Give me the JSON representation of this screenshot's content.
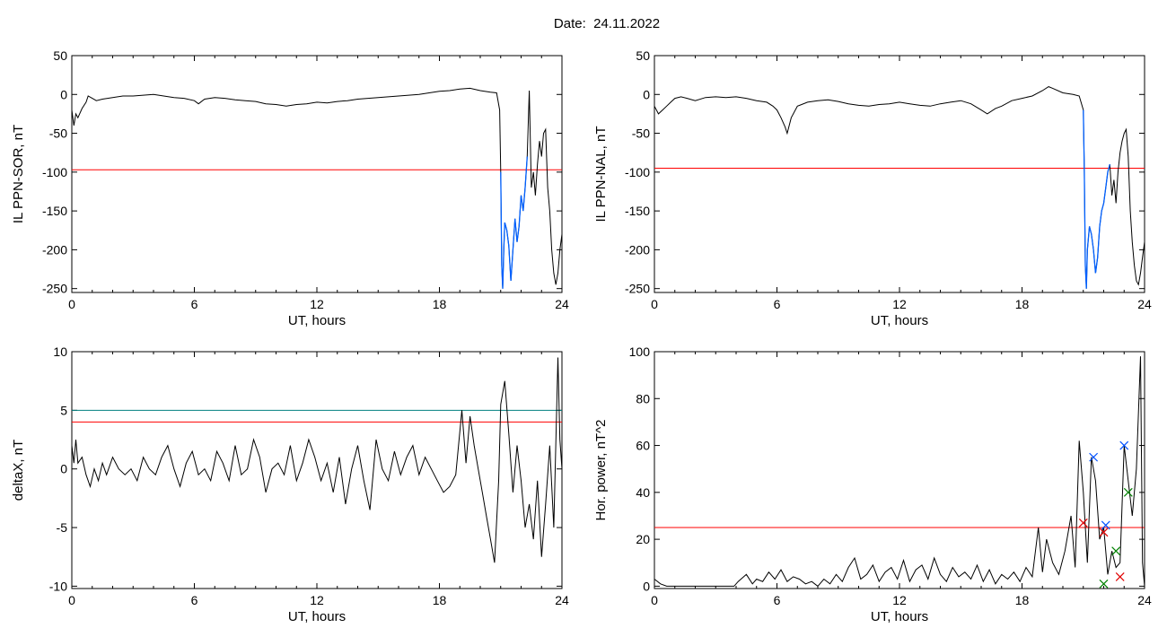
{
  "date_label": "Date:  24.11.2022",
  "colors": {
    "trace": "#000000",
    "threshold_red": "#ff0000",
    "threshold_teal": "#008080",
    "highlight_blue": "#0060ff",
    "marker_blue": "#0050ff",
    "marker_red": "#e00000",
    "marker_green": "#008000"
  },
  "chart_data": [
    {
      "type": "line",
      "xlabel": "UT, hours",
      "ylabel": "IL PPN-SOR, nT",
      "xlim": [
        0,
        24
      ],
      "ylim": [
        -255,
        50
      ],
      "xticks": [
        "0",
        "6",
        "12",
        "18",
        "24"
      ],
      "yticks": [
        "50",
        "0",
        "-50",
        "-100",
        "-150",
        "-200",
        "-250"
      ],
      "threshold": -97,
      "series": [
        {
          "x": [
            0,
            0.1,
            0.2,
            0.3,
            0.5,
            0.7,
            0.8,
            1.0,
            1.2,
            1.5,
            2,
            2.5,
            3,
            3.5,
            4,
            4.5,
            5,
            5.5,
            6,
            6.2,
            6.5,
            7,
            7.5,
            8,
            8.5,
            9,
            9.5,
            10,
            10.5,
            11,
            11.5,
            12,
            12.5,
            13,
            13.5,
            14,
            14.5,
            15,
            15.5,
            16,
            16.5,
            17,
            17.5,
            18,
            18.5,
            19,
            19.5,
            20,
            20.5,
            20.8,
            20.95,
            21.0,
            21.05,
            21.1,
            21.15,
            21.2,
            21.3,
            21.4,
            21.5,
            21.6,
            21.7,
            21.8,
            21.9,
            22.0,
            22.1,
            22.2,
            22.3,
            22.4,
            22.5,
            22.6,
            22.7,
            22.8,
            22.9,
            23.0,
            23.1,
            23.2,
            23.3,
            23.4,
            23.5,
            23.6,
            23.7,
            23.8,
            23.9,
            24
          ],
          "y": [
            -20,
            -40,
            -25,
            -30,
            -18,
            -10,
            -2,
            -5,
            -8,
            -6,
            -4,
            -2,
            -2,
            -1,
            0,
            -2,
            -4,
            -5,
            -8,
            -12,
            -6,
            -4,
            -5,
            -7,
            -8,
            -9,
            -12,
            -13,
            -15,
            -13,
            -12,
            -10,
            -11,
            -9,
            -8,
            -6,
            -5,
            -4,
            -3,
            -2,
            -1,
            0,
            2,
            4,
            5,
            7,
            8,
            5,
            3,
            2,
            -20,
            -100,
            -220,
            -250,
            -200,
            -165,
            -175,
            -195,
            -240,
            -200,
            -160,
            -190,
            -170,
            -130,
            -150,
            -120,
            -80,
            5,
            -120,
            -100,
            -130,
            -90,
            -60,
            -80,
            -50,
            -45,
            -120,
            -150,
            -200,
            -230,
            -245,
            -230,
            -200,
            -180
          ],
          "highlight_range": [
            21.0,
            22.3
          ]
        }
      ]
    },
    {
      "type": "line",
      "xlabel": "UT, hours",
      "ylabel": "IL PPN-NAL, nT",
      "xlim": [
        0,
        24
      ],
      "ylim": [
        -255,
        50
      ],
      "xticks": [
        "0",
        "6",
        "12",
        "18",
        "24"
      ],
      "yticks": [
        "50",
        "0",
        "-50",
        "-100",
        "-150",
        "-200",
        "-250"
      ],
      "threshold": -95,
      "series": [
        {
          "x": [
            0,
            0.2,
            0.4,
            0.6,
            0.8,
            1.0,
            1.3,
            1.6,
            2.0,
            2.5,
            3,
            3.5,
            4,
            4.5,
            5,
            5.5,
            5.8,
            6.0,
            6.2,
            6.4,
            6.5,
            6.7,
            7.0,
            7.5,
            8,
            8.5,
            9,
            9.5,
            10,
            10.5,
            11,
            11.5,
            12,
            12.5,
            13,
            13.5,
            14,
            14.5,
            15,
            15.5,
            16,
            16.3,
            16.7,
            17,
            17.5,
            18,
            18.5,
            19,
            19.3,
            19.5,
            20,
            20.5,
            20.8,
            21.0,
            21.05,
            21.1,
            21.15,
            21.2,
            21.3,
            21.4,
            21.5,
            21.6,
            21.7,
            21.8,
            21.9,
            22.0,
            22.1,
            22.2,
            22.3,
            22.4,
            22.5,
            22.6,
            22.7,
            22.8,
            22.9,
            23.0,
            23.1,
            23.2,
            23.3,
            23.4,
            23.5,
            23.6,
            23.7,
            23.8,
            23.9,
            24
          ],
          "y": [
            -15,
            -25,
            -20,
            -15,
            -10,
            -5,
            -3,
            -5,
            -8,
            -4,
            -3,
            -4,
            -3,
            -5,
            -8,
            -10,
            -15,
            -20,
            -30,
            -42,
            -50,
            -30,
            -15,
            -10,
            -8,
            -7,
            -9,
            -12,
            -14,
            -15,
            -13,
            -12,
            -10,
            -12,
            -14,
            -15,
            -12,
            -10,
            -8,
            -12,
            -20,
            -25,
            -18,
            -15,
            -8,
            -5,
            -2,
            5,
            10,
            8,
            2,
            0,
            -2,
            -20,
            -100,
            -220,
            -250,
            -200,
            -170,
            -180,
            -200,
            -230,
            -210,
            -170,
            -150,
            -140,
            -120,
            -100,
            -90,
            -130,
            -110,
            -140,
            -100,
            -75,
            -60,
            -50,
            -45,
            -80,
            -150,
            -190,
            -220,
            -240,
            -245,
            -230,
            -210,
            -190
          ],
          "highlight_range": [
            21.0,
            22.3
          ]
        }
      ]
    },
    {
      "type": "line",
      "xlabel": "UT, hours",
      "ylabel": "deltaX, nT",
      "xlim": [
        0,
        24
      ],
      "ylim": [
        -10.2,
        10
      ],
      "xticks": [
        "0",
        "6",
        "12",
        "18",
        "24"
      ],
      "yticks": [
        "10",
        "5",
        "0",
        "-5",
        "-10"
      ],
      "threshold": 4,
      "threshold2": 5,
      "series": [
        {
          "x": [
            0,
            0.1,
            0.2,
            0.3,
            0.5,
            0.7,
            0.9,
            1.1,
            1.3,
            1.5,
            1.7,
            2,
            2.3,
            2.6,
            2.9,
            3.2,
            3.5,
            3.8,
            4.1,
            4.4,
            4.7,
            5.0,
            5.3,
            5.6,
            5.9,
            6.2,
            6.5,
            6.8,
            7.1,
            7.4,
            7.7,
            8.0,
            8.3,
            8.6,
            8.9,
            9.2,
            9.5,
            9.8,
            10.1,
            10.4,
            10.7,
            11.0,
            11.3,
            11.6,
            11.9,
            12.2,
            12.5,
            12.8,
            13.1,
            13.4,
            13.7,
            14.0,
            14.3,
            14.6,
            14.9,
            15.2,
            15.5,
            15.8,
            16.1,
            16.4,
            16.7,
            17.0,
            17.3,
            17.6,
            17.9,
            18.2,
            18.5,
            18.8,
            19.1,
            19.3,
            19.5,
            19.7,
            19.9,
            20.1,
            20.3,
            20.5,
            20.7,
            20.9,
            21.0,
            21.2,
            21.4,
            21.6,
            21.8,
            22.0,
            22.2,
            22.4,
            22.6,
            22.8,
            23.0,
            23.2,
            23.4,
            23.6,
            23.8,
            23.9,
            24
          ],
          "y": [
            2,
            0.5,
            2.5,
            0.5,
            1,
            -0.5,
            -1.5,
            0,
            -1,
            0.5,
            -0.5,
            1,
            0,
            -0.5,
            0,
            -1,
            1,
            0,
            -0.5,
            1,
            2,
            0,
            -1.5,
            0.5,
            1.5,
            -0.5,
            0,
            -1,
            1.5,
            0.5,
            -1,
            2,
            -0.5,
            0,
            2.5,
            1,
            -2,
            0,
            0.5,
            -0.5,
            2,
            -1,
            0.5,
            2.5,
            1,
            -1,
            0.5,
            -2,
            1,
            -3,
            0,
            2,
            -1,
            -3.5,
            2.5,
            0,
            -1,
            1.5,
            -0.5,
            1,
            2,
            -0.5,
            1,
            0,
            -1,
            -2,
            -1.5,
            -0.5,
            5,
            0.5,
            4.5,
            2,
            0,
            -2,
            -4,
            -6,
            -8,
            -1,
            5.5,
            7.5,
            3,
            -2,
            2,
            -1,
            -5,
            -3,
            -6,
            -1,
            -7.5,
            -3,
            2,
            -5,
            9.5,
            2.5,
            0
          ],
          "highlight_range": null
        }
      ]
    },
    {
      "type": "line",
      "xlabel": "UT, hours",
      "ylabel": "Hor. power, nT^2",
      "xlim": [
        0,
        24
      ],
      "ylim": [
        -1,
        100
      ],
      "xticks": [
        "0",
        "6",
        "12",
        "18",
        "24"
      ],
      "yticks": [
        "100",
        "80",
        "60",
        "40",
        "20",
        "0"
      ],
      "threshold": 25,
      "series": [
        {
          "x": [
            0,
            0.3,
            0.6,
            1,
            1.5,
            2,
            2.5,
            3,
            3.5,
            3.9,
            4.1,
            4.5,
            4.8,
            5.0,
            5.3,
            5.6,
            5.9,
            6.2,
            6.5,
            6.8,
            7.1,
            7.4,
            7.7,
            8.0,
            8.3,
            8.6,
            8.9,
            9.2,
            9.5,
            9.8,
            10.1,
            10.4,
            10.7,
            11.0,
            11.3,
            11.6,
            11.9,
            12.2,
            12.5,
            12.8,
            13.1,
            13.4,
            13.7,
            14.0,
            14.3,
            14.6,
            14.9,
            15.2,
            15.5,
            15.8,
            16.1,
            16.4,
            16.7,
            17.0,
            17.3,
            17.6,
            17.9,
            18.2,
            18.5,
            18.8,
            19.0,
            19.2,
            19.5,
            19.8,
            20.1,
            20.4,
            20.6,
            20.8,
            21.0,
            21.2,
            21.4,
            21.6,
            21.8,
            22.0,
            22.2,
            22.4,
            22.6,
            22.8,
            23.0,
            23.2,
            23.4,
            23.6,
            23.8,
            23.9,
            24
          ],
          "y": [
            3,
            1,
            0,
            0,
            0,
            0,
            0,
            0,
            0,
            0,
            2,
            5,
            1,
            3,
            2,
            6,
            3,
            7,
            2,
            4,
            3,
            1,
            2,
            0,
            3,
            1,
            5,
            2,
            8,
            12,
            3,
            5,
            9,
            2,
            6,
            8,
            3,
            11,
            2,
            7,
            9,
            3,
            12,
            5,
            2,
            8,
            4,
            6,
            3,
            9,
            2,
            7,
            1,
            5,
            3,
            6,
            2,
            8,
            4,
            25,
            6,
            20,
            10,
            5,
            15,
            30,
            8,
            62,
            40,
            10,
            55,
            45,
            20,
            25,
            5,
            15,
            8,
            10,
            60,
            45,
            30,
            50,
            98,
            10,
            0
          ],
          "highlight_range": null
        }
      ],
      "markers": [
        {
          "x": 21.5,
          "y": 55,
          "color": "blue"
        },
        {
          "x": 23.0,
          "y": 60,
          "color": "blue"
        },
        {
          "x": 22.1,
          "y": 26,
          "color": "blue"
        },
        {
          "x": 21.0,
          "y": 27,
          "color": "red"
        },
        {
          "x": 22.0,
          "y": 23,
          "color": "red"
        },
        {
          "x": 22.8,
          "y": 4,
          "color": "red"
        },
        {
          "x": 22.6,
          "y": 15,
          "color": "green"
        },
        {
          "x": 23.2,
          "y": 40,
          "color": "green"
        },
        {
          "x": 22.0,
          "y": 1,
          "color": "green"
        }
      ]
    }
  ]
}
